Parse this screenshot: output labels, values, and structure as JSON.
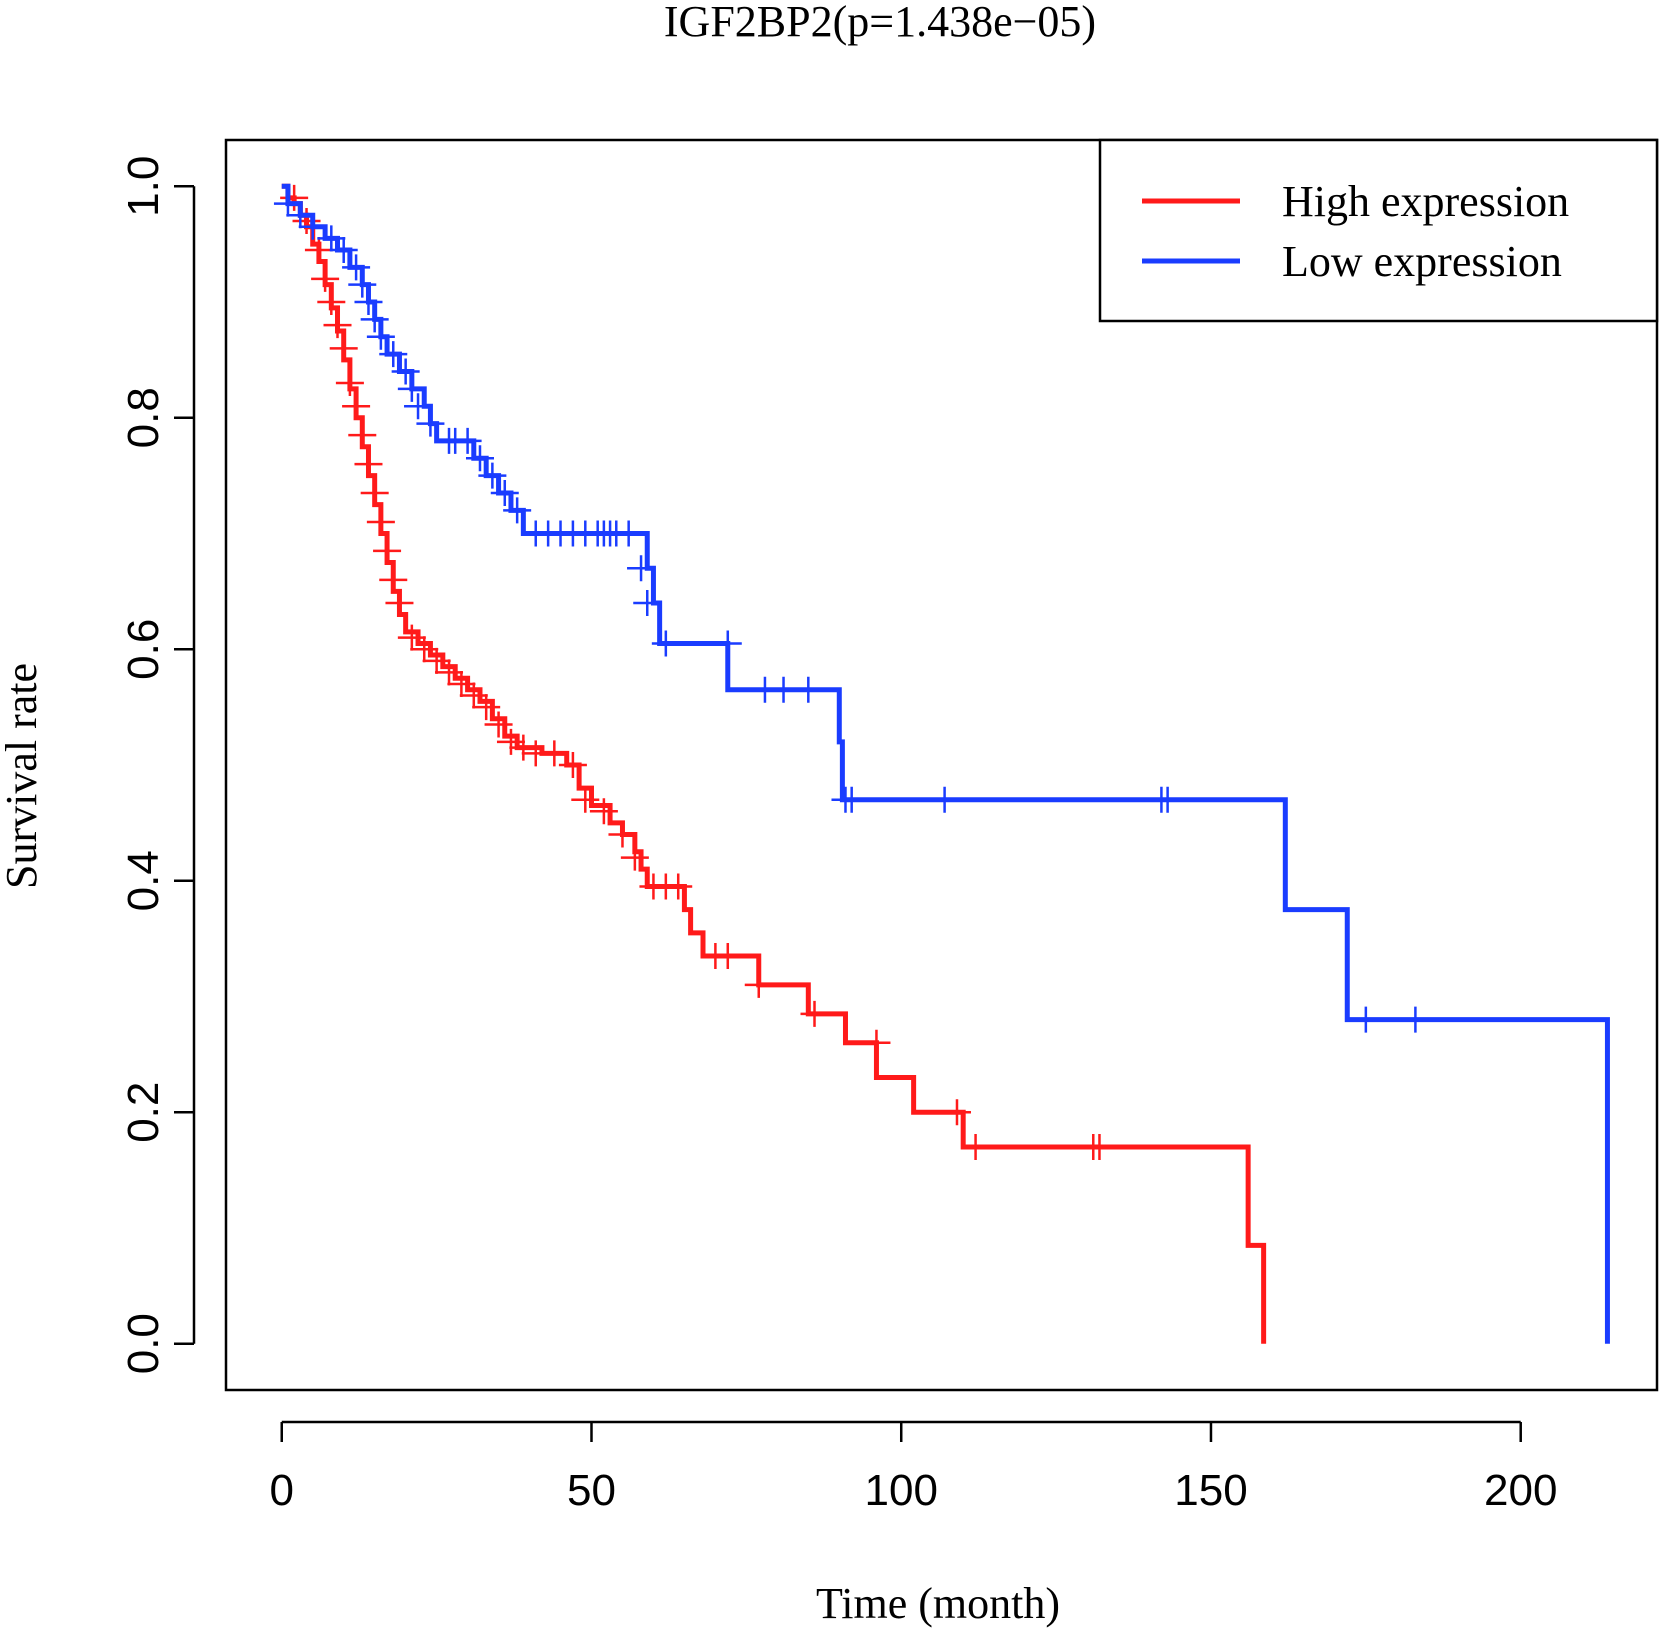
{
  "chart_data": {
    "type": "line",
    "subtype": "kaplan-meier",
    "title": "IGF2BP2(p=1.438e−05)",
    "xlabel": "Time (month)",
    "ylabel": "Survival rate",
    "xlim": [
      -9,
      222
    ],
    "ylim": [
      -0.04,
      1.04
    ],
    "xticks": [
      0,
      50,
      100,
      150,
      200
    ],
    "xtick_labels": [
      "0",
      "50",
      "100",
      "150",
      "200"
    ],
    "yticks": [
      0.0,
      0.2,
      0.4,
      0.6,
      0.8,
      1.0
    ],
    "ytick_labels": [
      "0.0",
      "0.2",
      "0.4",
      "0.6",
      "0.8",
      "1.0"
    ],
    "legend": {
      "position": "top-right",
      "entries": [
        {
          "label": "High expression",
          "color": "#ff1a1a"
        },
        {
          "label": "Low expression",
          "color": "#1a3cff"
        }
      ]
    },
    "series": [
      {
        "name": "High expression",
        "color": "#ff1a1a",
        "steps": [
          [
            0,
            1.0
          ],
          [
            1,
            0.99
          ],
          [
            2,
            0.985
          ],
          [
            3,
            0.975
          ],
          [
            4,
            0.965
          ],
          [
            5,
            0.95
          ],
          [
            6,
            0.935
          ],
          [
            7,
            0.915
          ],
          [
            8,
            0.895
          ],
          [
            9,
            0.875
          ],
          [
            10,
            0.85
          ],
          [
            11,
            0.825
          ],
          [
            12,
            0.8
          ],
          [
            13,
            0.775
          ],
          [
            14,
            0.75
          ],
          [
            15,
            0.725
          ],
          [
            16,
            0.7
          ],
          [
            17,
            0.675
          ],
          [
            18,
            0.65
          ],
          [
            19,
            0.63
          ],
          [
            20,
            0.615
          ],
          [
            22,
            0.605
          ],
          [
            24,
            0.595
          ],
          [
            26,
            0.585
          ],
          [
            28,
            0.575
          ],
          [
            30,
            0.565
          ],
          [
            32,
            0.555
          ],
          [
            34,
            0.54
          ],
          [
            36,
            0.525
          ],
          [
            38,
            0.515
          ],
          [
            42,
            0.51
          ],
          [
            46,
            0.5
          ],
          [
            48,
            0.48
          ],
          [
            50,
            0.465
          ],
          [
            53,
            0.45
          ],
          [
            55,
            0.44
          ],
          [
            57,
            0.425
          ],
          [
            58,
            0.41
          ],
          [
            59,
            0.395
          ],
          [
            65,
            0.375
          ],
          [
            66,
            0.355
          ],
          [
            68,
            0.335
          ],
          [
            77,
            0.31
          ],
          [
            85,
            0.285
          ],
          [
            91,
            0.26
          ],
          [
            96,
            0.23
          ],
          [
            102,
            0.2
          ],
          [
            110,
            0.17
          ],
          [
            156,
            0.085
          ],
          [
            158.5,
            0.0
          ]
        ],
        "end_x": 158.5,
        "censor_points": [
          [
            2,
            0.99
          ],
          [
            4,
            0.97
          ],
          [
            6,
            0.945
          ],
          [
            7,
            0.92
          ],
          [
            8,
            0.9
          ],
          [
            9,
            0.88
          ],
          [
            10,
            0.86
          ],
          [
            11,
            0.83
          ],
          [
            12,
            0.81
          ],
          [
            13,
            0.785
          ],
          [
            14,
            0.76
          ],
          [
            15,
            0.735
          ],
          [
            16,
            0.71
          ],
          [
            17,
            0.685
          ],
          [
            18,
            0.66
          ],
          [
            19,
            0.64
          ],
          [
            21,
            0.61
          ],
          [
            23,
            0.6
          ],
          [
            25,
            0.59
          ],
          [
            27,
            0.58
          ],
          [
            29,
            0.57
          ],
          [
            31,
            0.56
          ],
          [
            33,
            0.55
          ],
          [
            35,
            0.535
          ],
          [
            37,
            0.52
          ],
          [
            39,
            0.515
          ],
          [
            41,
            0.51
          ],
          [
            44,
            0.51
          ],
          [
            47,
            0.5
          ],
          [
            49,
            0.47
          ],
          [
            52,
            0.46
          ],
          [
            55,
            0.44
          ],
          [
            57,
            0.42
          ],
          [
            60,
            0.395
          ],
          [
            62,
            0.395
          ],
          [
            64,
            0.395
          ],
          [
            70,
            0.335
          ],
          [
            72,
            0.335
          ],
          [
            77,
            0.31
          ],
          [
            86,
            0.285
          ],
          [
            96,
            0.26
          ],
          [
            109,
            0.2
          ],
          [
            112,
            0.17
          ],
          [
            131,
            0.17
          ],
          [
            132,
            0.17
          ]
        ]
      },
      {
        "name": "Low expression",
        "color": "#1a3cff",
        "steps": [
          [
            0,
            1.0
          ],
          [
            1,
            0.985
          ],
          [
            3,
            0.975
          ],
          [
            5,
            0.965
          ],
          [
            7,
            0.955
          ],
          [
            9,
            0.945
          ],
          [
            11,
            0.93
          ],
          [
            13,
            0.915
          ],
          [
            14,
            0.9
          ],
          [
            15,
            0.885
          ],
          [
            16,
            0.87
          ],
          [
            17,
            0.855
          ],
          [
            19,
            0.84
          ],
          [
            21,
            0.825
          ],
          [
            23,
            0.81
          ],
          [
            24,
            0.795
          ],
          [
            25,
            0.78
          ],
          [
            31,
            0.765
          ],
          [
            33,
            0.75
          ],
          [
            35,
            0.735
          ],
          [
            37,
            0.72
          ],
          [
            39,
            0.7
          ],
          [
            59,
            0.67
          ],
          [
            60,
            0.64
          ],
          [
            61,
            0.605
          ],
          [
            72,
            0.565
          ],
          [
            90,
            0.52
          ],
          [
            90.5,
            0.47
          ],
          [
            162,
            0.375
          ],
          [
            172,
            0.28
          ],
          [
            214,
            0.0
          ]
        ],
        "end_x": 214,
        "censor_points": [
          [
            1,
            0.985
          ],
          [
            3,
            0.975
          ],
          [
            5,
            0.965
          ],
          [
            8,
            0.955
          ],
          [
            10,
            0.945
          ],
          [
            12,
            0.93
          ],
          [
            13,
            0.915
          ],
          [
            14,
            0.9
          ],
          [
            15,
            0.885
          ],
          [
            16,
            0.87
          ],
          [
            18,
            0.855
          ],
          [
            20,
            0.84
          ],
          [
            21,
            0.825
          ],
          [
            22,
            0.81
          ],
          [
            24,
            0.795
          ],
          [
            27,
            0.78
          ],
          [
            28,
            0.78
          ],
          [
            30,
            0.78
          ],
          [
            32,
            0.765
          ],
          [
            34,
            0.75
          ],
          [
            36,
            0.735
          ],
          [
            38,
            0.72
          ],
          [
            41,
            0.7
          ],
          [
            43,
            0.7
          ],
          [
            45,
            0.7
          ],
          [
            47,
            0.7
          ],
          [
            49,
            0.7
          ],
          [
            51,
            0.7
          ],
          [
            52,
            0.7
          ],
          [
            53,
            0.7
          ],
          [
            54,
            0.7
          ],
          [
            56,
            0.7
          ],
          [
            58,
            0.67
          ],
          [
            59,
            0.64
          ],
          [
            62,
            0.605
          ],
          [
            72,
            0.605
          ],
          [
            78,
            0.565
          ],
          [
            81,
            0.565
          ],
          [
            85,
            0.565
          ],
          [
            91,
            0.47
          ],
          [
            92,
            0.47
          ],
          [
            107,
            0.47
          ],
          [
            142,
            0.47
          ],
          [
            143,
            0.47
          ],
          [
            175,
            0.28
          ],
          [
            183,
            0.28
          ]
        ]
      }
    ]
  }
}
